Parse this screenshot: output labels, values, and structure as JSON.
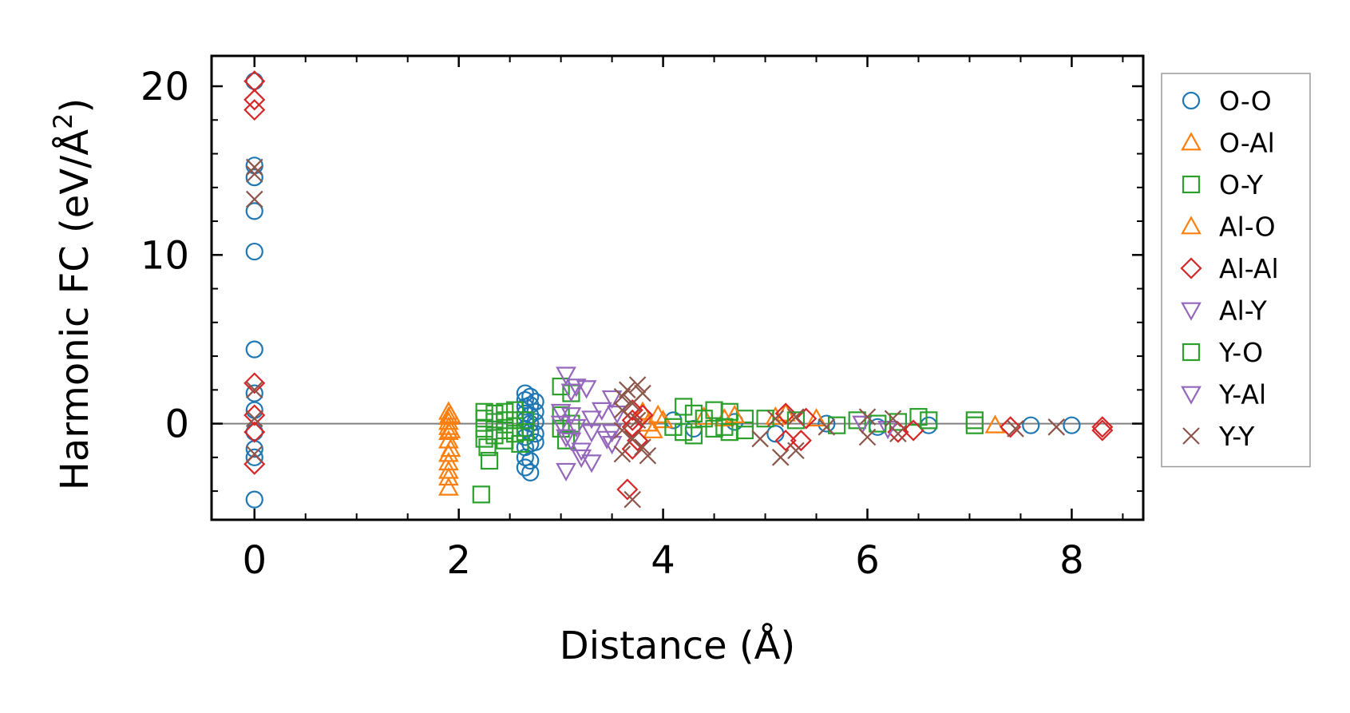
{
  "chart_data": {
    "type": "scatter",
    "xlabel": "Distance (Å)",
    "ylabel": "Harmonic FC (eV/Å",
    "ylabel_sup": "2",
    "ylabel_close": ")",
    "xlim": [
      -0.42,
      8.7
    ],
    "ylim": [
      -5.7,
      21.8
    ],
    "xticks": [
      0,
      2,
      4,
      6,
      8
    ],
    "xtick_labels": [
      "0",
      "2",
      "4",
      "6",
      "8"
    ],
    "yticks": [
      0,
      10,
      20
    ],
    "ytick_labels": [
      "0",
      "10",
      "20"
    ],
    "zero_line": true,
    "grid": false,
    "legend_position": "outside-right",
    "series": [
      {
        "name": "O-O",
        "marker": "circle",
        "color": "#1f77b4",
        "points": [
          [
            0,
            20.3
          ],
          [
            0,
            15.3
          ],
          [
            0,
            14.6
          ],
          [
            0,
            12.6
          ],
          [
            0,
            10.2
          ],
          [
            0,
            4.4
          ],
          [
            0,
            1.8
          ],
          [
            0,
            0.8
          ],
          [
            0,
            -0.5
          ],
          [
            0,
            -1.5
          ],
          [
            0,
            -2.0
          ],
          [
            0,
            -4.5
          ],
          [
            2.65,
            1.8
          ],
          [
            2.65,
            1.4
          ],
          [
            2.65,
            1.0
          ],
          [
            2.65,
            0.6
          ],
          [
            2.65,
            0.2
          ],
          [
            2.65,
            -0.3
          ],
          [
            2.65,
            -0.8
          ],
          [
            2.65,
            -1.4
          ],
          [
            2.65,
            -2.0
          ],
          [
            2.65,
            -2.6
          ],
          [
            2.7,
            1.6
          ],
          [
            2.7,
            1.1
          ],
          [
            2.7,
            0.5
          ],
          [
            2.7,
            0.0
          ],
          [
            2.7,
            -0.5
          ],
          [
            2.7,
            -1.2
          ],
          [
            2.7,
            -2.2
          ],
          [
            2.7,
            -2.9
          ],
          [
            2.75,
            1.3
          ],
          [
            2.75,
            0.7
          ],
          [
            2.75,
            0.1
          ],
          [
            2.75,
            -0.6
          ],
          [
            2.75,
            -1.1
          ],
          [
            4.1,
            0.2
          ],
          [
            4.3,
            -0.3
          ],
          [
            4.7,
            0.1
          ],
          [
            5.1,
            -0.6
          ],
          [
            5.6,
            0.0
          ],
          [
            6.1,
            -0.2
          ],
          [
            6.6,
            -0.1
          ],
          [
            7.6,
            -0.1
          ],
          [
            8.0,
            -0.1
          ]
        ]
      },
      {
        "name": "O-Al",
        "marker": "triangle-up",
        "color": "#ff7f0e",
        "points": [
          [
            1.9,
            0.7
          ],
          [
            1.9,
            0.4
          ],
          [
            1.9,
            0.1
          ],
          [
            1.9,
            -0.2
          ],
          [
            1.9,
            -0.5
          ],
          [
            1.9,
            -1.0
          ],
          [
            1.9,
            -1.8
          ],
          [
            1.9,
            -2.3
          ],
          [
            1.9,
            -2.8
          ],
          [
            1.9,
            -3.2
          ],
          [
            1.9,
            -3.8
          ],
          [
            3.95,
            0.5
          ],
          [
            4.0,
            0.2
          ],
          [
            4.4,
            0.4
          ],
          [
            4.6,
            0.3
          ],
          [
            5.2,
            0.6
          ],
          [
            5.5,
            0.3
          ],
          [
            7.25,
            -0.1
          ]
        ]
      },
      {
        "name": "O-Y",
        "marker": "square",
        "color": "#2ca02c",
        "points": [
          [
            2.22,
            -4.2
          ],
          [
            2.25,
            0.7
          ],
          [
            2.25,
            0.3
          ],
          [
            2.25,
            -0.3
          ],
          [
            2.25,
            -0.9
          ],
          [
            2.28,
            -1.4
          ],
          [
            2.3,
            -2.2
          ],
          [
            2.35,
            0.6
          ],
          [
            2.35,
            0.1
          ],
          [
            2.35,
            -0.7
          ],
          [
            2.45,
            0.7
          ],
          [
            2.45,
            0.2
          ],
          [
            2.45,
            -0.4
          ],
          [
            2.45,
            -1.0
          ],
          [
            2.55,
            0.8
          ],
          [
            2.55,
            0.2
          ],
          [
            2.55,
            -0.6
          ],
          [
            2.6,
            -1.2
          ],
          [
            3.0,
            2.2
          ],
          [
            3.0,
            0.5
          ],
          [
            3.0,
            -0.3
          ],
          [
            3.05,
            -1.0
          ],
          [
            3.1,
            1.8
          ],
          [
            3.1,
            0.0
          ],
          [
            4.2,
            1.0
          ],
          [
            4.2,
            -0.5
          ],
          [
            4.3,
            0.6
          ],
          [
            4.3,
            -0.7
          ],
          [
            4.5,
            0.8
          ],
          [
            4.5,
            -0.3
          ],
          [
            4.65,
            0.7
          ],
          [
            4.65,
            -0.5
          ],
          [
            4.8,
            0.3
          ],
          [
            4.8,
            -0.4
          ],
          [
            5.9,
            0.2
          ],
          [
            6.3,
            0.1
          ],
          [
            6.5,
            0.4
          ],
          [
            7.05,
            0.2
          ],
          [
            7.05,
            -0.1
          ]
        ]
      },
      {
        "name": "Al-O",
        "marker": "triangle-up",
        "color": "#ff7f0e",
        "points": [
          [
            1.92,
            0.5
          ],
          [
            1.92,
            -0.4
          ],
          [
            1.92,
            -1.5
          ],
          [
            3.8,
            0.7
          ],
          [
            3.85,
            0.0
          ],
          [
            3.9,
            -0.4
          ],
          [
            4.7,
            0.5
          ],
          [
            5.1,
            0.4
          ]
        ]
      },
      {
        "name": "Al-Al",
        "marker": "diamond",
        "color": "#d62728",
        "points": [
          [
            0,
            20.3
          ],
          [
            0,
            19.2
          ],
          [
            0,
            18.6
          ],
          [
            0,
            2.4
          ],
          [
            0,
            0.5
          ],
          [
            0,
            -0.5
          ],
          [
            0,
            -2.4
          ],
          [
            3.65,
            -3.9
          ],
          [
            3.7,
            0.8
          ],
          [
            3.7,
            0.2
          ],
          [
            3.7,
            -0.2
          ],
          [
            3.75,
            -1.0
          ],
          [
            3.7,
            -1.5
          ],
          [
            3.8,
            0.5
          ],
          [
            5.2,
            0.6
          ],
          [
            5.2,
            -1.0
          ],
          [
            5.4,
            0.3
          ],
          [
            5.35,
            -1.0
          ],
          [
            6.3,
            -0.5
          ],
          [
            6.45,
            -0.4
          ],
          [
            7.4,
            -0.2
          ],
          [
            8.3,
            -0.2
          ],
          [
            8.3,
            -0.4
          ]
        ]
      },
      {
        "name": "Al-Y",
        "marker": "triangle-down",
        "color": "#9467bd",
        "points": [
          [
            3.0,
            0.7
          ],
          [
            3.0,
            0.0
          ],
          [
            3.05,
            -0.8
          ],
          [
            3.05,
            -2.8
          ],
          [
            3.1,
            0.5
          ],
          [
            3.15,
            -0.2
          ],
          [
            3.2,
            -2.0
          ],
          [
            3.3,
            0.3
          ],
          [
            3.3,
            -0.5
          ],
          [
            3.5,
            1.5
          ],
          [
            3.5,
            -0.5
          ],
          [
            3.5,
            -1.2
          ],
          [
            3.55,
            0.6
          ],
          [
            5.95,
            0.0
          ],
          [
            6.2,
            -0.3
          ]
        ]
      },
      {
        "name": "Y-O",
        "marker": "square",
        "color": "#2ca02c",
        "points": [
          [
            2.65,
            0.2
          ],
          [
            2.65,
            -0.5
          ],
          [
            4.1,
            -0.2
          ],
          [
            4.4,
            0.3
          ],
          [
            4.6,
            -0.2
          ],
          [
            5.0,
            0.3
          ],
          [
            5.3,
            0.2
          ],
          [
            5.7,
            -0.1
          ],
          [
            6.1,
            0.0
          ],
          [
            6.6,
            0.2
          ]
        ]
      },
      {
        "name": "Y-Al",
        "marker": "triangle-down",
        "color": "#9467bd",
        "points": [
          [
            3.05,
            2.9
          ],
          [
            3.1,
            1.9
          ],
          [
            3.15,
            2.2
          ],
          [
            3.25,
            2.1
          ],
          [
            3.1,
            -1.0
          ],
          [
            3.2,
            -1.6
          ],
          [
            3.3,
            -2.3
          ],
          [
            3.4,
            0.8
          ],
          [
            3.45,
            -0.9
          ]
        ]
      },
      {
        "name": "Y-Y",
        "marker": "x",
        "color": "#8c564b",
        "points": [
          [
            0,
            15.2
          ],
          [
            0,
            14.8
          ],
          [
            0,
            13.3
          ],
          [
            0,
            2.0
          ],
          [
            0,
            0.3
          ],
          [
            0,
            -1.8
          ],
          [
            3.6,
            1.6
          ],
          [
            3.6,
            0.8
          ],
          [
            3.6,
            -0.4
          ],
          [
            3.6,
            -1.8
          ],
          [
            3.65,
            2.0
          ],
          [
            3.7,
            1.2
          ],
          [
            3.7,
            -0.9
          ],
          [
            3.75,
            2.3
          ],
          [
            3.75,
            0.2
          ],
          [
            3.8,
            1.8
          ],
          [
            3.8,
            -1.4
          ],
          [
            3.85,
            -1.9
          ],
          [
            3.7,
            -4.5
          ],
          [
            4.95,
            -0.9
          ],
          [
            5.1,
            0.3
          ],
          [
            5.15,
            -2.0
          ],
          [
            5.3,
            -1.6
          ],
          [
            5.3,
            0.4
          ],
          [
            5.6,
            -0.2
          ],
          [
            6.0,
            0.4
          ],
          [
            6.0,
            -0.8
          ],
          [
            6.25,
            0.3
          ],
          [
            6.3,
            -0.6
          ],
          [
            7.45,
            -0.3
          ],
          [
            7.85,
            -0.2
          ]
        ]
      }
    ]
  }
}
